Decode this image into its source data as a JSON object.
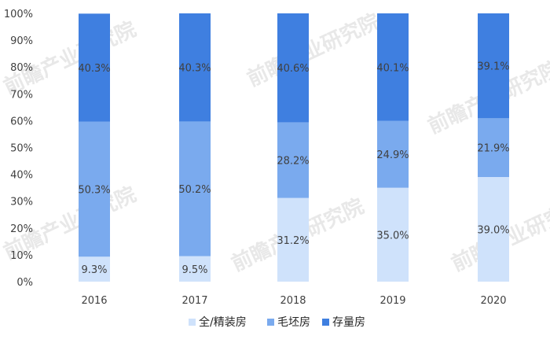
{
  "chart_data": {
    "type": "bar",
    "stacked": true,
    "percent_stacked": true,
    "categories": [
      "2016",
      "2017",
      "2018",
      "2019",
      "2020"
    ],
    "series": [
      {
        "name": "全/精装房",
        "color": "#cfe2fb",
        "values": [
          9.3,
          9.5,
          31.2,
          35.0,
          39.0
        ],
        "labels": [
          "9.3%",
          "9.5%",
          "31.2%",
          "35.0%",
          "39.0%"
        ]
      },
      {
        "name": "毛坯房",
        "color": "#7aaaee",
        "values": [
          50.3,
          50.2,
          28.2,
          24.9,
          21.9
        ],
        "labels": [
          "50.3%",
          "50.2%",
          "28.2%",
          "24.9%",
          "21.9%"
        ]
      },
      {
        "name": "存量房",
        "color": "#3f7fe0",
        "values": [
          40.3,
          40.3,
          40.6,
          40.1,
          39.1
        ],
        "labels": [
          "40.3%",
          "40.3%",
          "40.6%",
          "40.1%",
          "39.1%"
        ]
      }
    ],
    "y_ticks": [
      "0%",
      "10%",
      "20%",
      "30%",
      "40%",
      "50%",
      "60%",
      "70%",
      "80%",
      "90%",
      "100%"
    ],
    "ylim": [
      0,
      100
    ],
    "grid": false,
    "legend_position": "bottom",
    "watermark": "前瞻产业研究院"
  }
}
